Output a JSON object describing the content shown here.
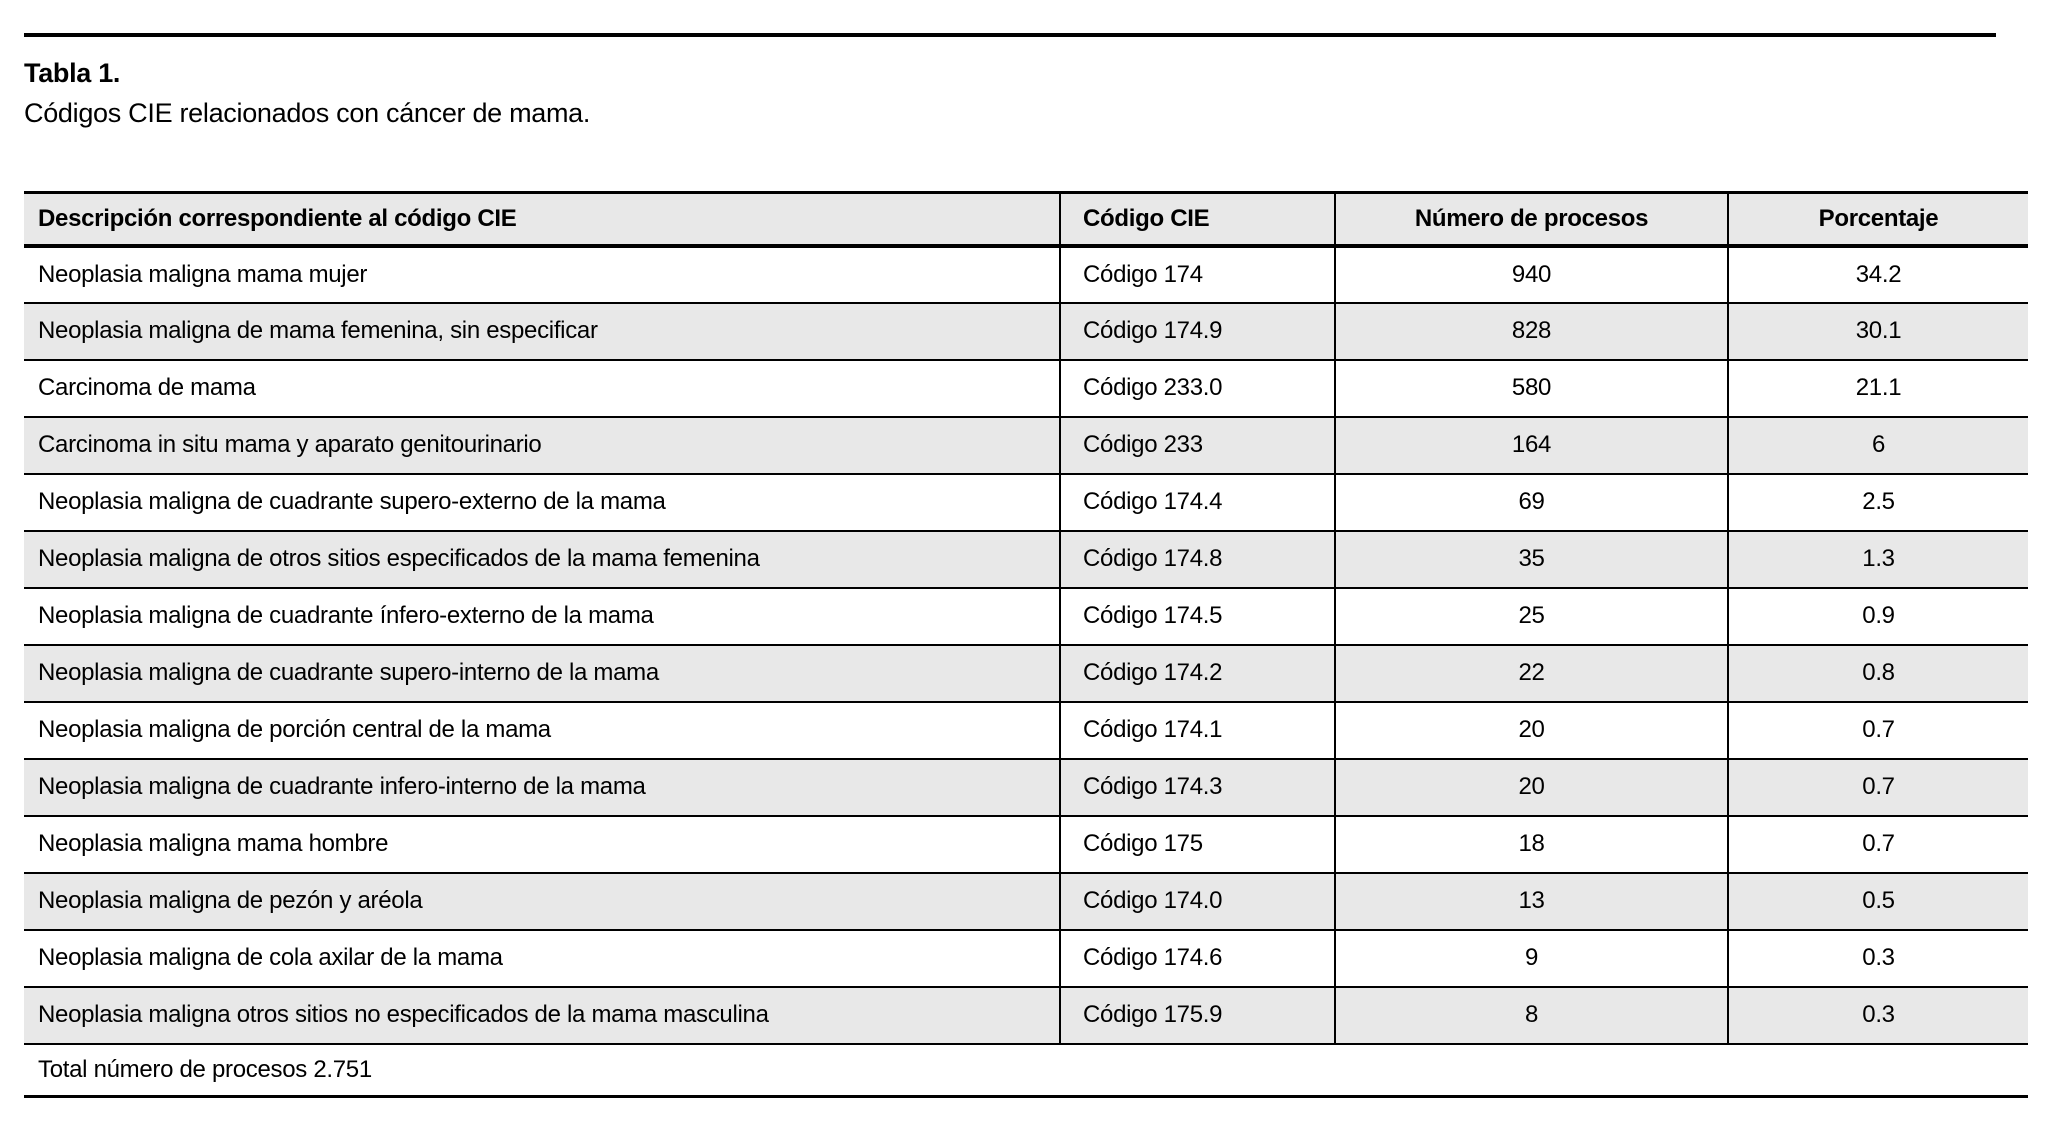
{
  "table": {
    "label": "Tabla 1.",
    "caption": "Códigos CIE relacionados con cáncer de mama.",
    "columns": [
      "Descripción correspondiente al código CIE",
      "Código CIE",
      "Número de procesos",
      "Porcentaje"
    ],
    "rows": [
      [
        "Neoplasia maligna mama mujer",
        "Código 174",
        "940",
        "34.2"
      ],
      [
        "Neoplasia maligna de mama femenina, sin especificar",
        "Código 174.9",
        "828",
        "30.1"
      ],
      [
        "Carcinoma de mama",
        "Código 233.0",
        "580",
        "21.1"
      ],
      [
        "Carcinoma in situ mama y aparato genitourinario",
        "Código 233",
        "164",
        "6"
      ],
      [
        "Neoplasia maligna de cuadrante supero-externo de la mama",
        "Código 174.4",
        "69",
        "2.5"
      ],
      [
        "Neoplasia maligna de otros sitios especificados de la mama femenina",
        "Código 174.8",
        "35",
        "1.3"
      ],
      [
        "Neoplasia maligna de cuadrante ínfero-externo de la mama",
        "Código 174.5",
        "25",
        "0.9"
      ],
      [
        "Neoplasia maligna de cuadrante supero-interno de la mama",
        "Código 174.2",
        "22",
        "0.8"
      ],
      [
        "Neoplasia maligna de porción central de la mama",
        "Código 174.1",
        "20",
        "0.7"
      ],
      [
        "Neoplasia maligna de cuadrante infero-interno de la mama",
        "Código 174.3",
        "20",
        "0.7"
      ],
      [
        "Neoplasia maligna mama hombre",
        "Código 175",
        "18",
        "0.7"
      ],
      [
        "Neoplasia maligna de pezón y aréola",
        "Código 174.0",
        "13",
        "0.5"
      ],
      [
        "Neoplasia maligna de cola axilar de la mama",
        "Código 174.6",
        "9",
        "0.3"
      ],
      [
        "Neoplasia maligna otros sitios no especificados de la mama masculina",
        "Código 175.9",
        "8",
        "0.3"
      ]
    ],
    "footer": "Total número de procesos 2.751"
  },
  "colors": {
    "stripe": "#e8e8e8",
    "border": "#000000",
    "text": "#000000",
    "background": "#ffffff"
  }
}
